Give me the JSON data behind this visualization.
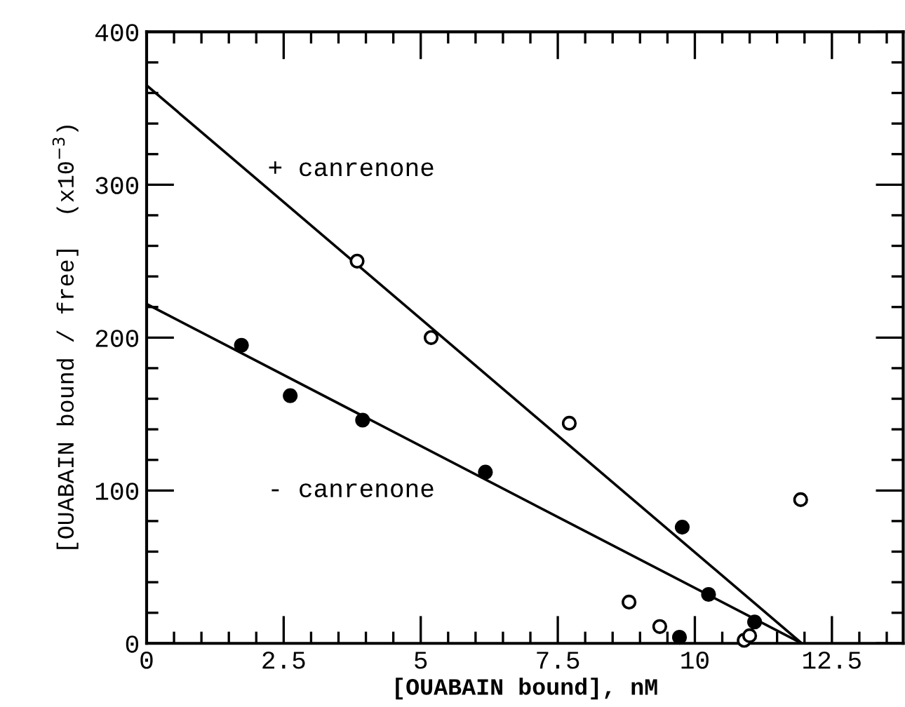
{
  "chart_data": {
    "type": "scatter",
    "xlabel": "[OUABAIN bound], nM",
    "ylabel": "[OUABAIN bound / free]  (x10$^{−3}$)",
    "xlim": [
      0,
      13.8
    ],
    "ylim": [
      0,
      400
    ],
    "xticks": [
      0,
      {
        "value": 0.5,
        "label": null
      },
      {
        "value": 1,
        "label": null
      },
      {
        "value": 1.5,
        "label": null
      },
      {
        "value": 2,
        "label": null
      },
      2.5,
      {
        "value": 3,
        "label": null
      },
      {
        "value": 3.5,
        "label": null
      },
      {
        "value": 4,
        "label": null
      },
      {
        "value": 4.5,
        "label": null
      },
      5,
      {
        "value": 5.5,
        "label": null
      },
      {
        "value": 6,
        "label": null
      },
      {
        "value": 6.5,
        "label": null
      },
      {
        "value": 7,
        "label": null
      },
      7.5,
      {
        "value": 8,
        "label": null
      },
      {
        "value": 8.5,
        "label": null
      },
      {
        "value": 9,
        "label": null
      },
      {
        "value": 9.5,
        "label": null
      },
      10,
      {
        "value": 10.5,
        "label": null
      },
      {
        "value": 11,
        "label": null
      },
      {
        "value": 11.5,
        "label": null
      },
      {
        "value": 12,
        "label": null
      },
      12.5,
      {
        "value": 13,
        "label": null
      },
      {
        "value": 13.5,
        "label": null
      }
    ],
    "yticks": [
      0,
      {
        "value": 20,
        "label": null
      },
      {
        "value": 40,
        "label": null
      },
      {
        "value": 60,
        "label": null
      },
      {
        "value": 80,
        "label": null
      },
      100,
      {
        "value": 120,
        "label": null
      },
      {
        "value": 140,
        "label": null
      },
      {
        "value": 160,
        "label": null
      },
      {
        "value": 180,
        "label": null
      },
      200,
      {
        "value": 220,
        "label": null
      },
      {
        "value": 240,
        "label": null
      },
      {
        "value": 260,
        "label": null
      },
      {
        "value": 280,
        "label": null
      },
      300,
      {
        "value": 320,
        "label": null
      },
      {
        "value": 340,
        "label": null
      },
      {
        "value": 360,
        "label": null
      },
      {
        "value": 380,
        "label": null
      },
      400
    ],
    "grid": false,
    "series": [
      {
        "marker": "circle",
        "color": "#000000",
        "x": [
          1.73,
          2.62,
          3.94,
          6.18,
          9.77,
          10.25,
          11.09,
          9.72
        ],
        "values": [
          195,
          162,
          146,
          112,
          76,
          32,
          14,
          4
        ]
      },
      {
        "marker": "circle",
        "color": "#000000",
        "x": [
          3.84,
          5.19,
          7.71,
          8.8,
          9.36,
          10.9,
          11.0,
          11.93
        ],
        "values": [
          250,
          200,
          144,
          27,
          11,
          2,
          5,
          94
        ]
      },
      {
        "type": "line",
        "marker": "none",
        "color": "#000000",
        "x": [
          0,
          11.95
        ],
        "values": [
          365,
          0
        ]
      },
      {
        "type": "line",
        "marker": "none",
        "color": "#000000",
        "x": [
          0,
          11.95
        ],
        "values": [
          222,
          0
        ]
      }
    ],
    "annotations": [
      "+ canrenone",
      "- canrenone"
    ]
  }
}
